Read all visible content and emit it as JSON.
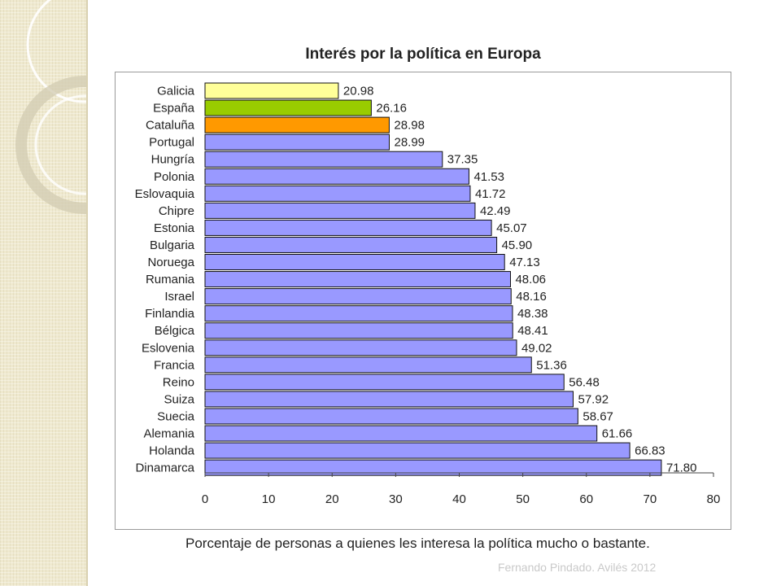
{
  "chart_data": {
    "type": "bar",
    "orientation": "horizontal",
    "title": "Interés por la política en Europa",
    "xlabel": "Porcentaje de personas a quienes les interesa la política mucho o bastante.",
    "categories": [
      "Galicia",
      "España",
      "Cataluña",
      "Portugal",
      "Hungría",
      "Polonia",
      "Eslovaquia",
      "Chipre",
      "Estonia",
      "Bulgaria",
      "Noruega",
      "Rumania",
      "Israel",
      "Finlandia",
      "Bélgica",
      "Eslovenia",
      "Francia",
      "Reino",
      "Suiza",
      "Suecia",
      "Alemania",
      "Holanda",
      "Dinamarca"
    ],
    "values": [
      20.98,
      26.16,
      28.98,
      28.99,
      37.35,
      41.53,
      41.72,
      42.49,
      45.07,
      45.9,
      47.13,
      48.06,
      48.16,
      48.38,
      48.41,
      49.02,
      51.36,
      56.48,
      57.92,
      58.67,
      61.66,
      66.83,
      71.8
    ],
    "value_labels": [
      "20.98",
      "26.16",
      "28.98",
      "28.99",
      "37.35",
      "41.53",
      "41.72",
      "42.49",
      "45.07",
      "45.90",
      "47.13",
      "48.06",
      "48.16",
      "48.38",
      "48.41",
      "49.02",
      "51.36",
      "56.48",
      "57.92",
      "58.67",
      "61.66",
      "66.83",
      "71.80"
    ],
    "bar_colors": [
      "#ffff99",
      "#99cc00",
      "#ff9900",
      "#9999ff",
      "#9999ff",
      "#9999ff",
      "#9999ff",
      "#9999ff",
      "#9999ff",
      "#9999ff",
      "#9999ff",
      "#9999ff",
      "#9999ff",
      "#9999ff",
      "#9999ff",
      "#9999ff",
      "#9999ff",
      "#9999ff",
      "#9999ff",
      "#9999ff",
      "#9999ff",
      "#9999ff",
      "#9999ff"
    ],
    "xlim": [
      0,
      80
    ],
    "xticks": [
      0,
      10,
      20,
      30,
      40,
      50,
      60,
      70,
      80
    ],
    "xtick_labels": [
      "0",
      "10",
      "20",
      "30",
      "40",
      "50",
      "60",
      "70",
      "80"
    ],
    "grid": false,
    "legend": false
  },
  "footer": "Fernando Pindado. Avilés 2012"
}
